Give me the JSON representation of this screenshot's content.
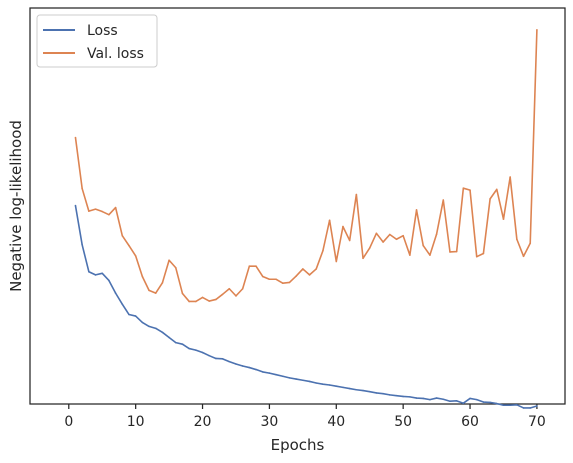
{
  "chart_data": {
    "type": "line",
    "xlabel": "Epochs",
    "ylabel": "Negative log-likelihood",
    "xlim": [
      -5.8,
      74.2
    ],
    "ylim": [
      0,
      100
    ],
    "x_ticks": [
      0,
      10,
      20,
      30,
      40,
      50,
      60,
      70
    ],
    "y_tick_labels_shown": false,
    "grid": false,
    "legend_position": "top-left",
    "x": [
      1,
      2,
      3,
      4,
      5,
      6,
      7,
      8,
      9,
      10,
      11,
      12,
      13,
      14,
      15,
      16,
      17,
      18,
      19,
      20,
      21,
      22,
      23,
      24,
      25,
      26,
      27,
      28,
      29,
      30,
      31,
      32,
      33,
      34,
      35,
      36,
      37,
      38,
      39,
      40,
      41,
      42,
      43,
      44,
      45,
      46,
      47,
      48,
      49,
      50,
      51,
      52,
      53,
      54,
      55,
      56,
      57,
      58,
      59,
      60,
      61,
      62,
      63,
      64,
      65,
      66,
      67,
      68,
      69,
      70
    ],
    "series": [
      {
        "name": "Loss",
        "color": "#4c72b0",
        "values": [
          50.1,
          40.2,
          33.4,
          32.6,
          33.0,
          31.2,
          28.0,
          25.2,
          22.6,
          22.2,
          20.6,
          19.6,
          19.1,
          18.1,
          16.8,
          15.5,
          15.1,
          14.0,
          13.6,
          13.0,
          12.2,
          11.5,
          11.4,
          10.7,
          10.1,
          9.6,
          9.2,
          8.7,
          8.1,
          7.8,
          7.4,
          7.0,
          6.6,
          6.3,
          6.0,
          5.7,
          5.3,
          5.0,
          4.8,
          4.5,
          4.2,
          3.9,
          3.6,
          3.4,
          3.1,
          2.8,
          2.6,
          2.3,
          2.1,
          1.9,
          1.8,
          1.5,
          1.4,
          1.1,
          1.5,
          1.2,
          0.7,
          0.8,
          0.2,
          1.4,
          1.1,
          0.5,
          0.4,
          0.1,
          -0.3,
          -0.3,
          -0.2,
          -1.0,
          -1.0,
          -0.5
        ]
      },
      {
        "name": "Val. loss",
        "color": "#dd8452",
        "values": [
          67.3,
          54.4,
          48.7,
          49.2,
          48.6,
          47.8,
          49.6,
          42.5,
          40.0,
          37.4,
          32.2,
          28.7,
          28.0,
          30.6,
          36.3,
          34.4,
          27.9,
          25.9,
          25.9,
          26.9,
          26.0,
          26.4,
          27.7,
          29.1,
          27.3,
          29.1,
          34.8,
          34.8,
          32.2,
          31.5,
          31.5,
          30.5,
          30.7,
          32.3,
          34.1,
          32.6,
          34.1,
          38.7,
          46.4,
          36.0,
          44.8,
          41.3,
          52.9,
          36.8,
          39.4,
          43.1,
          40.9,
          42.8,
          41.6,
          42.5,
          37.6,
          49.0,
          40.0,
          37.6,
          42.9,
          51.5,
          38.4,
          38.5,
          54.5,
          54.0,
          37.2,
          38.0,
          51.8,
          54.2,
          46.7,
          57.3,
          41.6,
          37.3,
          40.6,
          94.5
        ]
      }
    ]
  }
}
